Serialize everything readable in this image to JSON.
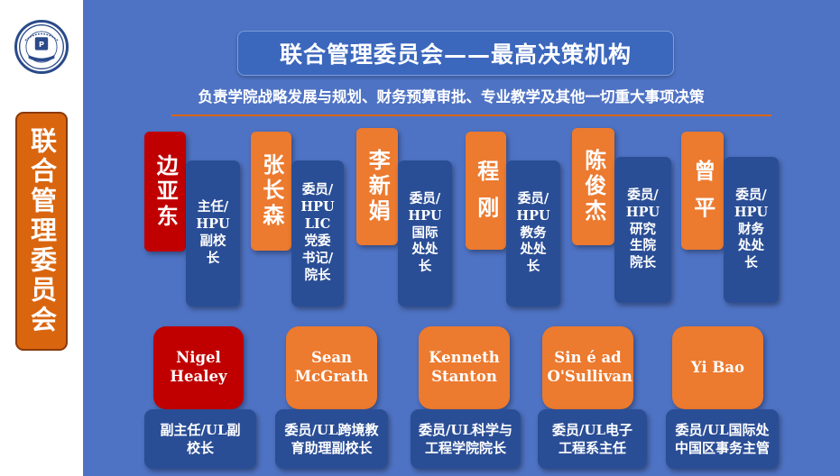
{
  "sidebar": {
    "label": "联合管理委员会"
  },
  "header": {
    "title": "联合管理委员会——最高决策机构",
    "subtitle": "负责学院战略发展与规划、财务预算审批、专业教学及其他一切重大事项决策"
  },
  "colors": {
    "background": "#4f73c4",
    "chair": "#c00000",
    "member": "#ec7a2f",
    "role": "#2a4e96",
    "accent_rule": "#d9650f"
  },
  "hpu_members": [
    {
      "name": "边亚东",
      "role": "主任/HPU副校长"
    },
    {
      "name": "张长森",
      "role": "委员/HPU LIC党委书记/院长"
    },
    {
      "name": "李新娟",
      "role": "委员/HPU国际处处长"
    },
    {
      "name": "程 刚",
      "role": "委员/HPU教务处处长"
    },
    {
      "name": "陈俊杰",
      "role": "委员/HPU研究生院院长"
    },
    {
      "name": "曾 平",
      "role": "委员/HPU财务处处长"
    }
  ],
  "ul_members": [
    {
      "name": "Nigel Healey",
      "role": "副主任/UL副校长"
    },
    {
      "name": "Sean McGrath",
      "role": "委员/UL跨境教育助理副校长"
    },
    {
      "name": "Kenneth Stanton",
      "role": "委员/UL科学与工程学院院长"
    },
    {
      "name": "Sin é ad O'Sullivan",
      "role": "委员/UL电子工程系主任"
    },
    {
      "name": "Yi Bao",
      "role": "委员/UL国际处中国区事务主管"
    }
  ]
}
